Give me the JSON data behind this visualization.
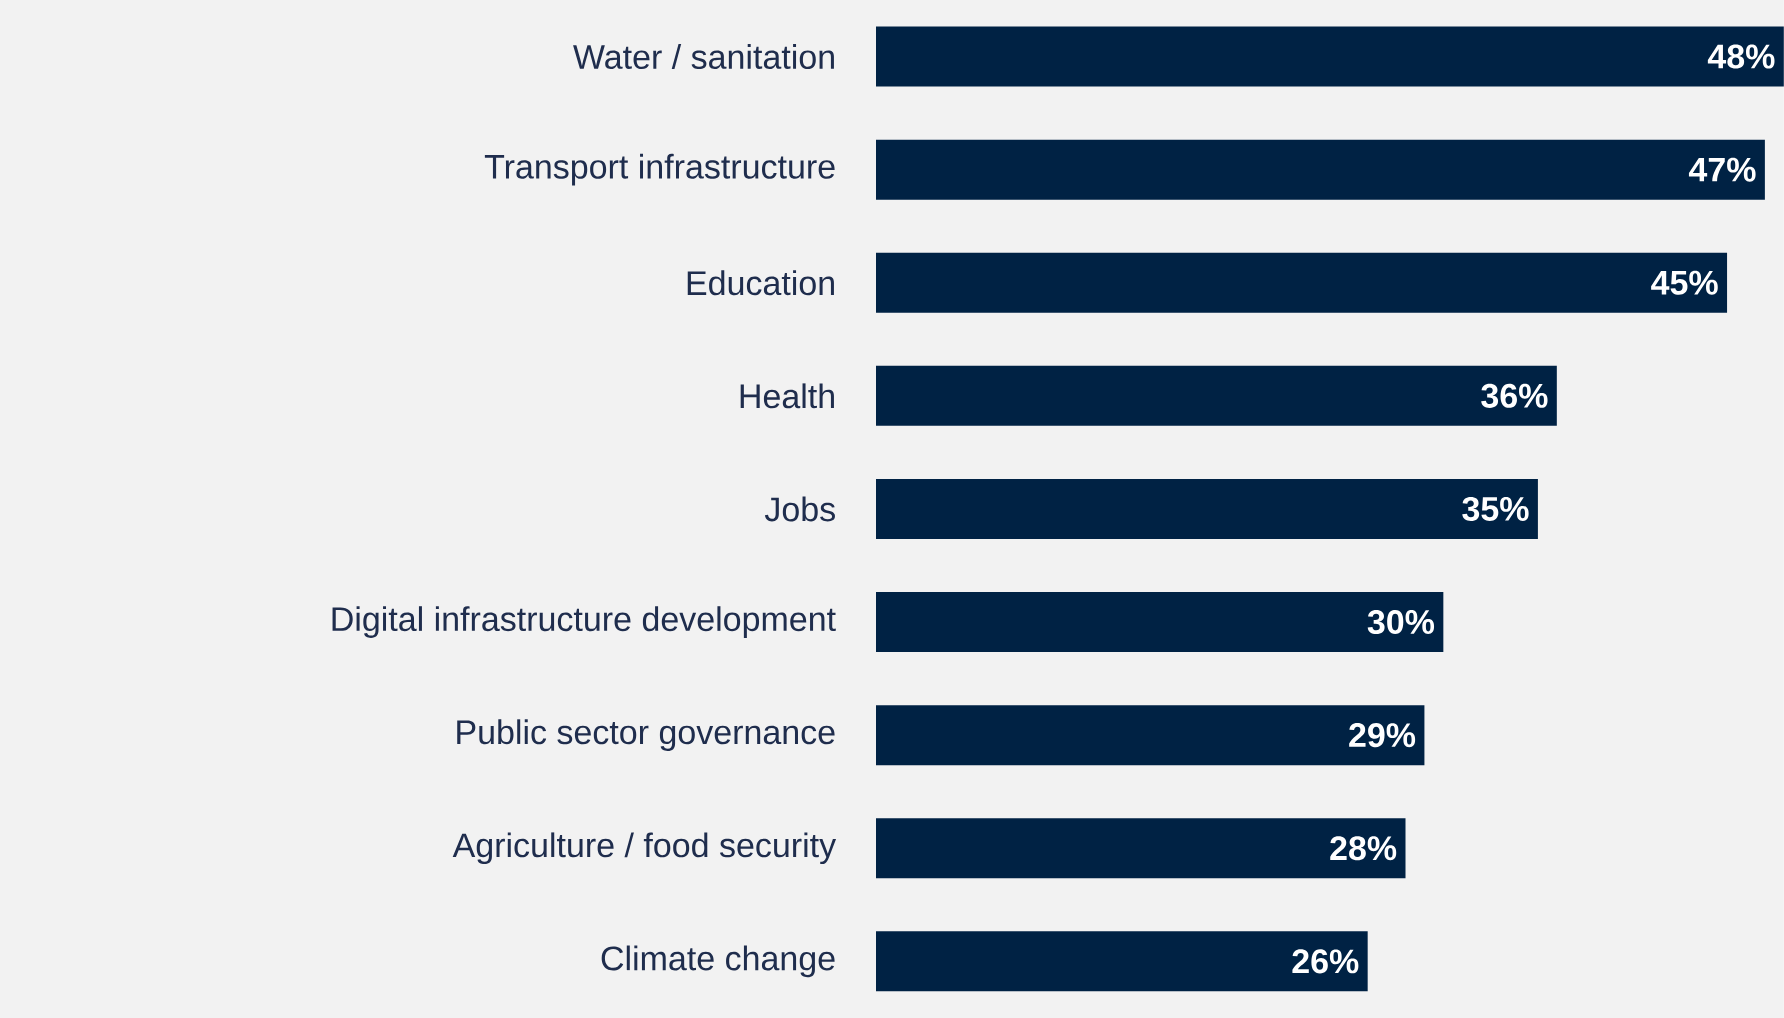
{
  "chart_data": {
    "type": "bar",
    "orientation": "horizontal",
    "categories": [
      "Water / sanitation",
      "Transport infrastructure",
      "Education",
      "Health",
      "Jobs",
      "Digital infrastructure development",
      "Public sector governance",
      "Agriculture / food security",
      "Climate change"
    ],
    "values": [
      48,
      47,
      45,
      36,
      35,
      30,
      29,
      28,
      26
    ],
    "value_labels": [
      "48%",
      "47%",
      "45%",
      "36%",
      "35%",
      "30%",
      "29%",
      "28%",
      "26%"
    ],
    "color": "#002244"
  }
}
